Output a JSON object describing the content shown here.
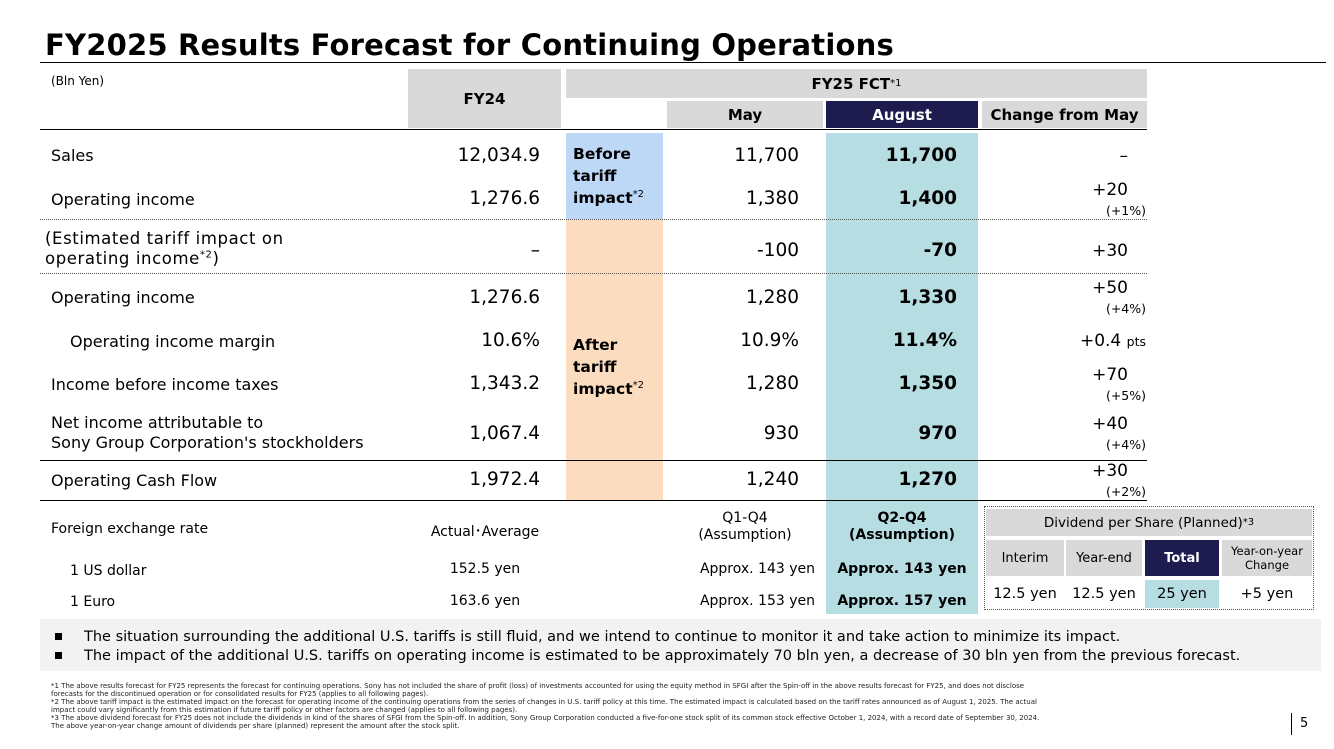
{
  "title": "FY2025 Results Forecast for Continuing Operations",
  "unit": "(Bln Yen)",
  "headers": {
    "fy24": "FY24",
    "fy25_fct": "FY25 FCT",
    "fy25_fct_note": "*1",
    "may": "May",
    "august": "August",
    "change": "Change from May"
  },
  "bands": {
    "before": "Before tariff impact",
    "after": "After tariff impact",
    "note": "*2"
  },
  "rows": [
    {
      "label": "Sales",
      "fy24": "12,034.9",
      "may": "11,700",
      "august": "11,700",
      "change": "–",
      "change_sub": ""
    },
    {
      "label": "Operating income",
      "fy24": "1,276.6",
      "may": "1,380",
      "august": "1,400",
      "change": "+20",
      "change_sub": "(+1%)"
    },
    {
      "label_line1": "(Estimated tariff impact on",
      "label_line2": "operating income",
      "label_note": "*2",
      "label_close": ")",
      "fy24": "–",
      "may": "-100",
      "august": "-70",
      "change": "+30",
      "change_sub": ""
    },
    {
      "label": "Operating income",
      "fy24": "1,276.6",
      "may": "1,280",
      "august": "1,330",
      "change": "+50",
      "change_sub": "(+4%)"
    },
    {
      "label": "Operating income margin",
      "fy24": "10.6%",
      "may": "10.9%",
      "august": "11.4%",
      "change": "+0.4",
      "change_unit": "pts",
      "change_sub": ""
    },
    {
      "label": "Income before income taxes",
      "fy24": "1,343.2",
      "may": "1,280",
      "august": "1,350",
      "change": "+70",
      "change_sub": "(+5%)"
    },
    {
      "label_line1": "Net income attributable to",
      "label_line2": "Sony Group Corporation's stockholders",
      "fy24": "1,067.4",
      "may": "930",
      "august": "970",
      "change": "+40",
      "change_sub": "(+4%)"
    },
    {
      "label": "Operating Cash Flow",
      "fy24": "1,972.4",
      "may": "1,240",
      "august": "1,270",
      "change": "+30",
      "change_sub": "(+2%)"
    }
  ],
  "fx": {
    "label": "Foreign exchange rate",
    "actual": "Actual･Average",
    "q1q4_line1": "Q1-Q4",
    "q1q4_line2": "(Assumption)",
    "q2q4_line1": "Q2-Q4",
    "q2q4_line2": "(Assumption)",
    "rows": [
      {
        "label": "1 US dollar",
        "actual": "152.5 yen",
        "may": "Approx. 143 yen",
        "august": "Approx. 143 yen"
      },
      {
        "label": "1 Euro",
        "actual": "163.6 yen",
        "may": "Approx. 153 yen",
        "august": "Approx. 157 yen"
      }
    ]
  },
  "dividend": {
    "title": "Dividend per Share (Planned)",
    "note": "*3",
    "interim_label": "Interim",
    "yearend_label": "Year-end",
    "total_label": "Total",
    "yoy_label_1": "Year-on-year",
    "yoy_label_2": "Change",
    "interim": "12.5 yen",
    "yearend": "12.5 yen",
    "total": "25 yen",
    "yoy": "+5 yen"
  },
  "notes": [
    "The situation surrounding the additional U.S. tariffs is still fluid, and we intend to continue to monitor it and take action to minimize its impact.",
    "The impact of the additional U.S. tariffs on operating income is estimated to be approximately 70 bln yen, a decrease of 30 bln yen from the previous forecast."
  ],
  "footnotes": [
    "*1  The above results forecast for FY25 represents the forecast for continuing operations. Sony has not included the share of profit (loss) of investments accounted for using the equity method in SFGI after the Spin-off in the above results forecast for FY25, and does not disclose",
    "      forecasts for the discontinued operation or for consolidated results for FY25 (applies to all following pages).",
    "*2  The above tariff impact is the estimated impact on the forecast for operating income of the continuing operations from the series of changes in U.S. tariff policy at this time. The estimated impact is calculated based on the tariff rates announced as of August 1, 2025. The actual",
    "      impact could vary significantly from this estimation if future tariff policy or other factors are changed (applies to all following pages).",
    "*3  The above dividend forecast for FY25 does not include the dividends in kind of the shares of SFGI from the Spin-off. In addition, Sony Group Corporation conducted a five-for-one stock split of its common stock effective October 1, 2024, with a record date of September 30, 2024.",
    "      The above year-on-year change amount of dividends per share (planned) represent the amount after the stock split."
  ],
  "page_number": "5"
}
